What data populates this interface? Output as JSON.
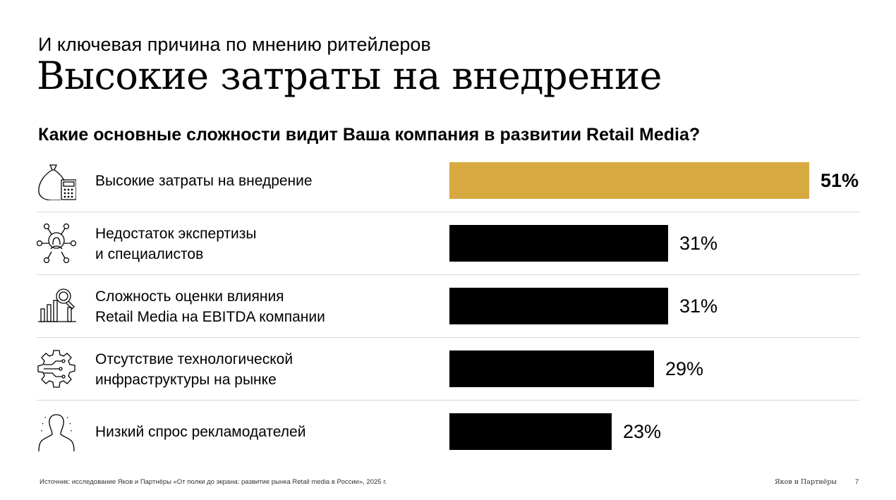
{
  "header": {
    "subtitle": "И ключевая причина по мнению ритейлеров",
    "title": "Высокие затраты на внедрение"
  },
  "chart_data": {
    "type": "bar",
    "orientation": "horizontal",
    "title": "Какие основные сложности видит Ваша компания в развитии Retail Media?",
    "categories": [
      "Высокие затраты на внедрение",
      "Недостаток экспертизы и специалистов",
      "Сложность оценки влияния Retail Media на EBITDA компании",
      "Отсутствие технологической инфраструктуры на рынке",
      "Низкий спрос рекламодателей"
    ],
    "category_lines": [
      [
        "Высокие затраты на внедрение"
      ],
      [
        "Недостаток экспертизы",
        "и специалистов"
      ],
      [
        "Сложность оценки влияния",
        "Retail Media на EBITDA компании"
      ],
      [
        "Отсутствие технологической",
        "инфраструктуры на рынке"
      ],
      [
        "Низкий спрос рекламодателей"
      ]
    ],
    "values": [
      51,
      31,
      31,
      29,
      23
    ],
    "value_labels": [
      "51%",
      "31%",
      "31%",
      "29%",
      "23%"
    ],
    "highlight_index": 0,
    "colors": {
      "highlight": "#D7A941",
      "default": "#000000"
    },
    "icons": [
      "money-bag-calculator-icon",
      "expert-network-icon",
      "magnifier-chart-icon",
      "gear-circuit-icon",
      "person-silhouette-icon"
    ]
  },
  "footer": {
    "source": "Источник: исследование Яков и Партнёры «От полки до экрана: развитие рынка Retail  media в России», 2025 г.",
    "brand": "Яков и Партнёры",
    "page": "7"
  }
}
